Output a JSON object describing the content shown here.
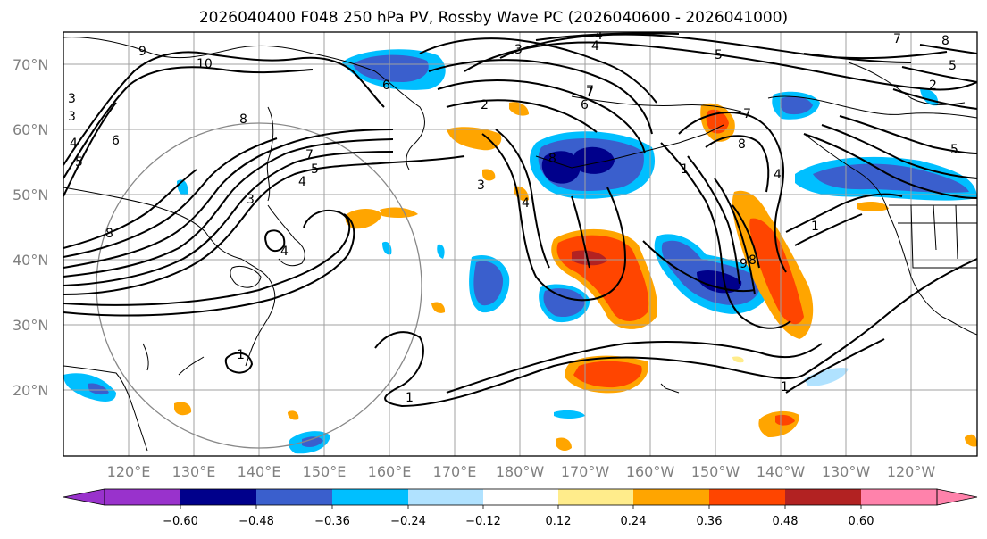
{
  "title": "2026040400 F048 250 hPa PV, Rossby Wave PC (2026040600 - 2026041000)",
  "lat_labels": [
    "70°N",
    "60°N",
    "50°N",
    "40°N",
    "30°N",
    "20°N"
  ],
  "lon_labels": [
    "120°E",
    "130°E",
    "140°E",
    "150°E",
    "160°E",
    "170°E",
    "180°W",
    "170°W",
    "160°W",
    "150°W",
    "140°W",
    "130°W",
    "120°W"
  ],
  "colorbar": {
    "colors": [
      "#9932cc",
      "#00008b",
      "#3a5fcd",
      "#00bfff",
      "#b0e2ff",
      "#ffffff",
      "#ffec8b",
      "#ffa500",
      "#ff4500",
      "#b22222",
      "#ff82ab"
    ],
    "tick_labels": [
      "−0.60",
      "−0.48",
      "−0.36",
      "−0.24",
      "−0.12",
      "0.12",
      "0.24",
      "0.36",
      "0.48",
      "0.60"
    ]
  },
  "contour_labels": [
    "10",
    "9",
    "8",
    "3",
    "5",
    "4",
    "3",
    "7",
    "6",
    "5",
    "4",
    "3",
    "6",
    "7",
    "8",
    "7",
    "5",
    "4",
    "3",
    "4",
    "2",
    "1",
    "1",
    "1",
    "1",
    "1",
    "8",
    "6",
    "5",
    "8",
    "7",
    "4",
    "4",
    "5",
    "7",
    "8",
    "2",
    "3",
    "4",
    "8",
    "9"
  ]
}
